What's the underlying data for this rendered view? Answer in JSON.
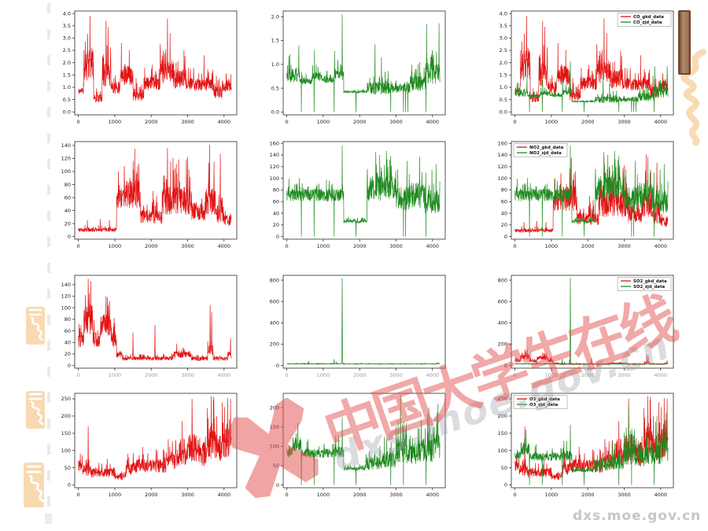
{
  "watermark": {
    "cn_text": "中国大学生在线",
    "url_text": "dxs.moe.gov.cn",
    "corner_url_text": "dxs.moe.gov.cn",
    "pink_color": "#e45252",
    "gray_color": "#9ea4ac"
  },
  "decorations": {
    "seal_color": "#f8d9b1",
    "panel_color": "#a47a5b",
    "left_dash_color": "#e2e2e2"
  },
  "colors": {
    "red_series": "#e11414",
    "green_series": "#1f8a1f"
  },
  "series_defs": {
    "CO_gkd": {
      "label": "CO_gkd_data",
      "color": "#e11414",
      "seed": 11,
      "segments": [
        [
          0,
          150,
          0.85,
          0.3
        ],
        [
          150,
          420,
          1.9,
          1.4
        ],
        [
          420,
          650,
          0.55,
          0.35
        ],
        [
          650,
          900,
          1.6,
          1.5
        ],
        [
          900,
          1150,
          1.0,
          0.6
        ],
        [
          1150,
          1500,
          1.5,
          0.9
        ],
        [
          1500,
          1800,
          0.7,
          0.55
        ],
        [
          1800,
          2250,
          1.15,
          0.6
        ],
        [
          2250,
          2600,
          1.6,
          1.1
        ],
        [
          2600,
          2950,
          1.35,
          0.9
        ],
        [
          2950,
          3700,
          1.1,
          0.55
        ],
        [
          3700,
          3950,
          0.8,
          0.55
        ],
        [
          3950,
          4200,
          1.05,
          0.55
        ]
      ],
      "spikes": [
        [
          320,
          3.9
        ],
        [
          760,
          3.7
        ],
        [
          820,
          3.45
        ],
        [
          1180,
          2.8
        ],
        [
          2250,
          2.75
        ],
        [
          2450,
          3.8
        ],
        [
          2520,
          3.2
        ],
        [
          2900,
          2.5
        ],
        [
          3450,
          2.3
        ]
      ],
      "drops": []
    },
    "CO_zjd": {
      "label": "CO_zjd_data",
      "color": "#1f8a1f",
      "seed": 22,
      "segments": [
        [
          0,
          350,
          0.78,
          0.35
        ],
        [
          350,
          700,
          0.65,
          0.14
        ],
        [
          700,
          1000,
          0.74,
          0.22
        ],
        [
          1000,
          1300,
          0.68,
          0.16
        ],
        [
          1300,
          1560,
          0.78,
          0.25
        ],
        [
          1560,
          2200,
          0.42,
          0.05
        ],
        [
          2200,
          2800,
          0.5,
          0.3
        ],
        [
          2800,
          3400,
          0.5,
          0.22
        ],
        [
          3400,
          3800,
          0.6,
          0.35
        ],
        [
          3800,
          4200,
          0.8,
          0.5
        ]
      ],
      "spikes": [
        [
          330,
          1.4
        ],
        [
          760,
          1.3
        ],
        [
          1310,
          1.28
        ],
        [
          1520,
          2.05
        ],
        [
          2420,
          1.42
        ],
        [
          2600,
          1.15
        ],
        [
          3650,
          1.05
        ],
        [
          3840,
          1.85
        ],
        [
          4000,
          1.3
        ],
        [
          4180,
          1.86
        ]
      ],
      "drops": [
        400,
        750,
        1300,
        1900,
        2850,
        3200,
        3260,
        3320,
        3820
      ]
    },
    "NO2_gkd": {
      "label": "NO2_gkd_data",
      "color": "#e11414",
      "seed": 33,
      "segments": [
        [
          0,
          1050,
          10,
          7
        ],
        [
          1050,
          1250,
          55,
          38
        ],
        [
          1250,
          1700,
          65,
          48
        ],
        [
          1700,
          2300,
          30,
          24
        ],
        [
          2300,
          3100,
          55,
          48
        ],
        [
          3100,
          3500,
          38,
          30
        ],
        [
          3500,
          3750,
          55,
          48
        ],
        [
          3750,
          4000,
          35,
          32
        ],
        [
          4000,
          4200,
          25,
          18
        ]
      ],
      "spikes": [
        [
          250,
          25
        ],
        [
          600,
          27
        ],
        [
          850,
          25
        ],
        [
          1100,
          100
        ],
        [
          1550,
          135
        ],
        [
          2050,
          70
        ],
        [
          2450,
          136
        ],
        [
          2600,
          121
        ],
        [
          3000,
          122
        ],
        [
          3600,
          141
        ],
        [
          3900,
          127
        ]
      ],
      "drops": []
    },
    "NO2_zjd": {
      "label": "NO2_zjd_data",
      "color": "#1f8a1f",
      "seed": 44,
      "segments": [
        [
          0,
          1560,
          71,
          24
        ],
        [
          1560,
          2200,
          26,
          6
        ],
        [
          2200,
          3000,
          82,
          48
        ],
        [
          3000,
          3400,
          65,
          45
        ],
        [
          3400,
          3800,
          70,
          50
        ],
        [
          3800,
          4200,
          60,
          45
        ]
      ],
      "spikes": [
        [
          1520,
          156
        ],
        [
          2550,
          140
        ],
        [
          2850,
          138
        ],
        [
          3300,
          130
        ],
        [
          3650,
          137
        ],
        [
          4100,
          124
        ]
      ],
      "drops": [
        400,
        750,
        1300,
        1900,
        2850,
        3200,
        3260,
        3820
      ]
    },
    "SO2_gkd": {
      "label": "SO2_gkd_data",
      "color": "#e11414",
      "seed": 55,
      "segments": [
        [
          0,
          150,
          45,
          35
        ],
        [
          150,
          400,
          80,
          58
        ],
        [
          400,
          600,
          45,
          30
        ],
        [
          600,
          900,
          70,
          42
        ],
        [
          900,
          1050,
          45,
          30
        ],
        [
          1050,
          1200,
          18,
          10
        ],
        [
          1200,
          2600,
          12,
          7
        ],
        [
          2600,
          3100,
          19,
          12
        ],
        [
          3100,
          3550,
          12,
          8
        ],
        [
          3550,
          3700,
          30,
          28
        ],
        [
          3700,
          4100,
          12,
          8
        ],
        [
          4100,
          4200,
          18,
          14
        ]
      ],
      "spikes": [
        [
          270,
          150
        ],
        [
          340,
          146
        ],
        [
          760,
          120
        ],
        [
          800,
          118
        ],
        [
          1500,
          57
        ],
        [
          2100,
          70
        ],
        [
          2700,
          38
        ],
        [
          3620,
          105
        ],
        [
          3660,
          92
        ],
        [
          4180,
          47
        ]
      ],
      "drops": []
    },
    "SO2_zjd": {
      "label": "SO2_zjd_data",
      "color": "#1f8a1f",
      "seed": 66,
      "segments": [
        [
          0,
          1500,
          15,
          6
        ],
        [
          1500,
          1545,
          20,
          8
        ],
        [
          1545,
          4100,
          14,
          5
        ],
        [
          4100,
          4200,
          20,
          9
        ]
      ],
      "spikes": [
        [
          600,
          42
        ],
        [
          1300,
          60
        ],
        [
          1360,
          35
        ],
        [
          1520,
          820
        ],
        [
          2050,
          30
        ],
        [
          3800,
          25
        ]
      ],
      "drops": []
    },
    "O3_gkd": {
      "label": "O3_gkd_data",
      "color": "#e11414",
      "seed": 77,
      "segments": [
        [
          0,
          120,
          55,
          35
        ],
        [
          120,
          350,
          45,
          42
        ],
        [
          350,
          1000,
          35,
          30
        ],
        [
          1000,
          1300,
          25,
          22
        ],
        [
          1300,
          1600,
          45,
          40
        ],
        [
          1600,
          2400,
          55,
          42
        ],
        [
          2400,
          2700,
          70,
          55
        ],
        [
          2700,
          3000,
          80,
          62
        ],
        [
          3000,
          3250,
          110,
          92
        ],
        [
          3250,
          3500,
          90,
          80
        ],
        [
          3500,
          3800,
          120,
          100
        ],
        [
          3800,
          4000,
          110,
          90
        ],
        [
          4000,
          4200,
          120,
          100
        ]
      ],
      "spikes": [
        [
          270,
          170
        ],
        [
          2850,
          185
        ],
        [
          3120,
          250
        ],
        [
          3650,
          258
        ],
        [
          3720,
          256
        ],
        [
          3950,
          240
        ],
        [
          4100,
          252
        ],
        [
          4180,
          250
        ]
      ],
      "drops": []
    },
    "O3_zjd": {
      "label": "O3_zjd_data",
      "color": "#1f8a1f",
      "seed": 88,
      "segments": [
        [
          0,
          150,
          85,
          30
        ],
        [
          150,
          400,
          105,
          42
        ],
        [
          400,
          1300,
          82,
          26
        ],
        [
          1300,
          1560,
          85,
          32
        ],
        [
          1560,
          2150,
          42,
          9
        ],
        [
          2150,
          2600,
          55,
          36
        ],
        [
          2600,
          3000,
          65,
          46
        ],
        [
          3000,
          3300,
          90,
          70
        ],
        [
          3300,
          3600,
          80,
          60
        ],
        [
          3600,
          4000,
          90,
          70
        ],
        [
          4000,
          4200,
          100,
          80
        ]
      ],
      "spikes": [
        [
          300,
          160
        ],
        [
          1420,
          128
        ],
        [
          1520,
          175
        ],
        [
          3120,
          232
        ],
        [
          3280,
          160
        ],
        [
          3900,
          200
        ],
        [
          4150,
          210
        ]
      ],
      "drops": [
        400,
        750,
        1300,
        1900,
        2850,
        3200,
        3820
      ]
    },
    "notes": "segments format: [x_start, x_end, baseline, amplitude]; spikes: [x, y]; drops: x positions where value dips to 0"
  },
  "chart_data": [
    {
      "id": "co-gkd",
      "type": "line",
      "grid_pos": {
        "row": 0,
        "col": 0
      },
      "xlim": [
        -100,
        4350
      ],
      "xticks": [
        0,
        1000,
        2000,
        3000,
        4000
      ],
      "ylim": [
        -0.12,
        4.1
      ],
      "yticks": [
        0,
        0.5,
        1,
        1.5,
        2,
        2.5,
        3,
        3.5,
        4
      ],
      "ytick_decimals": 1,
      "series": [
        "CO_gkd"
      ],
      "legend": null
    },
    {
      "id": "co-zjd",
      "type": "line",
      "grid_pos": {
        "row": 0,
        "col": 1
      },
      "xlim": [
        -100,
        4350
      ],
      "xticks": [
        0,
        1000,
        2000,
        3000,
        4000
      ],
      "ylim": [
        -0.06,
        2.12
      ],
      "yticks": [
        0,
        0.5,
        1,
        1.5,
        2
      ],
      "ytick_decimals": 1,
      "series": [
        "CO_zjd"
      ],
      "legend": null
    },
    {
      "id": "co-both",
      "type": "line",
      "grid_pos": {
        "row": 0,
        "col": 2
      },
      "xlim": [
        -100,
        4350
      ],
      "xticks": [
        0,
        1000,
        2000,
        3000,
        4000
      ],
      "ylim": [
        -0.12,
        4.1
      ],
      "yticks": [
        0,
        0.5,
        1,
        1.5,
        2,
        2.5,
        3,
        3.5,
        4
      ],
      "ytick_decimals": 1,
      "series": [
        "CO_gkd",
        "CO_zjd"
      ],
      "legend": {
        "position": "upper-right"
      }
    },
    {
      "id": "no2-gkd",
      "type": "line",
      "grid_pos": {
        "row": 1,
        "col": 0
      },
      "xlim": [
        -100,
        4350
      ],
      "xticks": [
        0,
        1000,
        2000,
        3000,
        4000
      ],
      "ylim": [
        -4,
        146
      ],
      "yticks": [
        0,
        20,
        40,
        60,
        80,
        100,
        120,
        140
      ],
      "ytick_decimals": 0,
      "series": [
        "NO2_gkd"
      ],
      "legend": null
    },
    {
      "id": "no2-zjd",
      "type": "line",
      "grid_pos": {
        "row": 1,
        "col": 1
      },
      "xlim": [
        -100,
        4350
      ],
      "xticks": [
        0,
        1000,
        2000,
        3000,
        4000
      ],
      "ylim": [
        -4.5,
        163
      ],
      "yticks": [
        0,
        20,
        40,
        60,
        80,
        100,
        120,
        140,
        160
      ],
      "ytick_decimals": 0,
      "series": [
        "NO2_zjd"
      ],
      "legend": null
    },
    {
      "id": "no2-both",
      "type": "line",
      "grid_pos": {
        "row": 1,
        "col": 2
      },
      "xlim": [
        -100,
        4350
      ],
      "xticks": [
        0,
        1000,
        2000,
        3000,
        4000
      ],
      "ylim": [
        -4.5,
        163
      ],
      "yticks": [
        0,
        20,
        40,
        60,
        80,
        100,
        120,
        140,
        160
      ],
      "ytick_decimals": 0,
      "series": [
        "NO2_gkd",
        "NO2_zjd"
      ],
      "legend": {
        "position": "upper-left"
      }
    },
    {
      "id": "so2-gkd",
      "type": "line",
      "grid_pos": {
        "row": 2,
        "col": 0
      },
      "xlim": [
        -100,
        4350
      ],
      "xticks": [
        0,
        1000,
        2000,
        3000,
        4000
      ],
      "ylim": [
        -4.5,
        156
      ],
      "yticks": [
        0,
        20,
        40,
        60,
        80,
        100,
        120,
        140
      ],
      "ytick_decimals": 0,
      "series": [
        "SO2_gkd"
      ],
      "legend": null
    },
    {
      "id": "so2-zjd",
      "type": "line",
      "grid_pos": {
        "row": 2,
        "col": 1
      },
      "xlim": [
        -100,
        4350
      ],
      "xticks": [
        0,
        1000,
        2000,
        3000,
        4000
      ],
      "ylim": [
        -25,
        845
      ],
      "yticks": [
        0,
        200,
        400,
        600,
        800
      ],
      "ytick_decimals": 0,
      "series": [
        "SO2_zjd"
      ],
      "legend": null
    },
    {
      "id": "so2-both",
      "type": "line",
      "grid_pos": {
        "row": 2,
        "col": 2
      },
      "xlim": [
        -100,
        4350
      ],
      "xticks": [
        0,
        1000,
        2000,
        3000,
        4000
      ],
      "ylim": [
        -25,
        845
      ],
      "yticks": [
        0,
        200,
        400,
        600,
        800
      ],
      "ytick_decimals": 0,
      "series": [
        "SO2_gkd",
        "SO2_zjd"
      ],
      "legend": {
        "position": "upper-right"
      }
    },
    {
      "id": "o3-gkd",
      "type": "line",
      "grid_pos": {
        "row": 3,
        "col": 0
      },
      "xlim": [
        -100,
        4350
      ],
      "xticks": [
        0,
        1000,
        2000,
        3000,
        4000
      ],
      "ylim": [
        -8,
        266
      ],
      "yticks": [
        0,
        50,
        100,
        150,
        200,
        250
      ],
      "ytick_decimals": 0,
      "series": [
        "O3_gkd"
      ],
      "legend": null
    },
    {
      "id": "o3-zjd",
      "type": "line",
      "grid_pos": {
        "row": 3,
        "col": 1
      },
      "xlim": [
        -100,
        4350
      ],
      "xticks": [
        0,
        1000,
        2000,
        3000,
        4000
      ],
      "ylim": [
        -7,
        237
      ],
      "yticks": [
        0,
        50,
        100,
        150,
        200
      ],
      "ytick_decimals": 0,
      "series": [
        "O3_zjd"
      ],
      "legend": null
    },
    {
      "id": "o3-both",
      "type": "line",
      "grid_pos": {
        "row": 3,
        "col": 2
      },
      "xlim": [
        -100,
        4350
      ],
      "xticks": [
        0,
        1000,
        2000,
        3000,
        4000
      ],
      "ylim": [
        -8,
        266
      ],
      "yticks": [
        0,
        50,
        100,
        150,
        200,
        250
      ],
      "ytick_decimals": 0,
      "series": [
        "O3_gkd",
        "O3_zjd"
      ],
      "legend": {
        "position": "upper-left"
      }
    }
  ]
}
